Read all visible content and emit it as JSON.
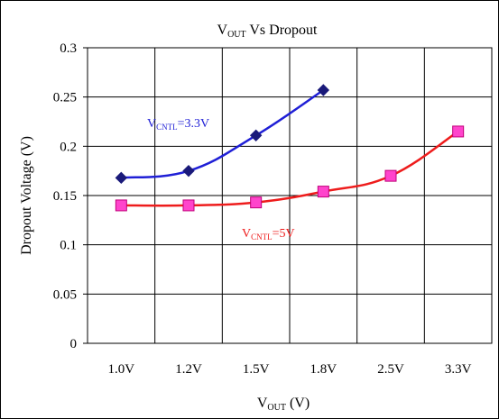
{
  "chart_data": {
    "type": "line",
    "title": {
      "main": "V",
      "sub": "OUT",
      "rest": " Vs Dropout"
    },
    "xlabel": {
      "main": "V",
      "sub": "OUT",
      "rest": " (V)"
    },
    "ylabel": "Dropout Voltage (V)",
    "categories": [
      "1.0V",
      "1.2V",
      "1.5V",
      "1.8V",
      "2.5V",
      "3.3V"
    ],
    "ylim": [
      0,
      0.3
    ],
    "yticks": [
      "0",
      "0.05",
      "0.1",
      "0.15",
      "0.2",
      "0.25",
      "0.3"
    ],
    "grid": true,
    "series": [
      {
        "label_main": "V",
        "label_sub": "CNTL",
        "label_rest": "=3.3V",
        "color": "#1f1fd6",
        "marker_color": "#1a1a7a",
        "marker": "diamond",
        "values": [
          0.168,
          0.175,
          0.211,
          0.257,
          null,
          null
        ]
      },
      {
        "label_main": "V",
        "label_sub": "CNTL",
        "label_rest": "=5V",
        "color": "#ee1c1c",
        "marker_color": "#ff44cc",
        "marker": "square",
        "values": [
          0.14,
          0.14,
          0.143,
          0.154,
          0.17,
          0.215
        ]
      }
    ]
  }
}
